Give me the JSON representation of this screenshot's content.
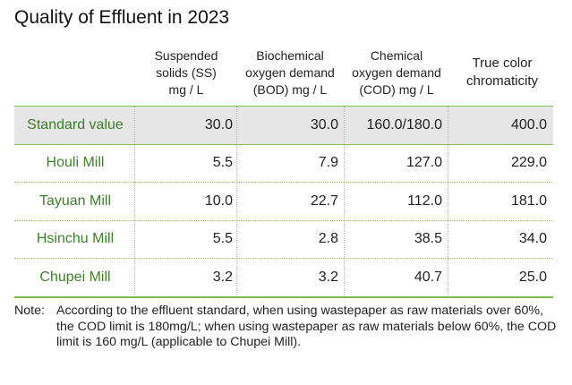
{
  "title": "Quality of Effluent in 2023",
  "columns": [
    "Suspended solids (SS) mg / L",
    "Biochemical oxygen demand (BOD) mg / L",
    "Chemical oxygen demand (COD) mg / L",
    "True color chromaticity"
  ],
  "header_lines": {
    "c1": [
      "Suspended",
      "solids (SS)",
      "mg / L"
    ],
    "c2": [
      "Biochemical",
      "oxygen demand",
      "(BOD) mg / L"
    ],
    "c3": [
      "Chemical",
      "oxygen demand",
      "(COD) mg / L"
    ],
    "c4": [
      "True color",
      "chromaticity"
    ]
  },
  "rows": [
    {
      "name": "Standard value",
      "ss": "30.0",
      "bod": "30.0",
      "cod": "160.0/180.0",
      "color": "400.0"
    },
    {
      "name": "Houli Mill",
      "ss": "5.5",
      "bod": "7.9",
      "cod": "127.0",
      "color": "229.0"
    },
    {
      "name": "Tayuan Mill",
      "ss": "10.0",
      "bod": "22.7",
      "cod": "112.0",
      "color": "181.0"
    },
    {
      "name": "Hsinchu Mill",
      "ss": "5.5",
      "bod": "2.8",
      "cod": "38.5",
      "color": "34.0"
    },
    {
      "name": "Chupei Mill",
      "ss": "3.2",
      "bod": "3.2",
      "cod": "40.7",
      "color": "25.0"
    }
  ],
  "note_label": "Note:",
  "note": "According to the effluent standard, when using wastepaper as raw materials over 60%, the COD limit is 180mg/L; when using wastepaper as raw materials below 60%, the COD limit is 160 mg/L (applicable to Chupei Mill).",
  "colors": {
    "accent_green": "#7dbb45",
    "name_text": "#3f7d2f",
    "standard_row_bg": "#e6e6e6"
  }
}
